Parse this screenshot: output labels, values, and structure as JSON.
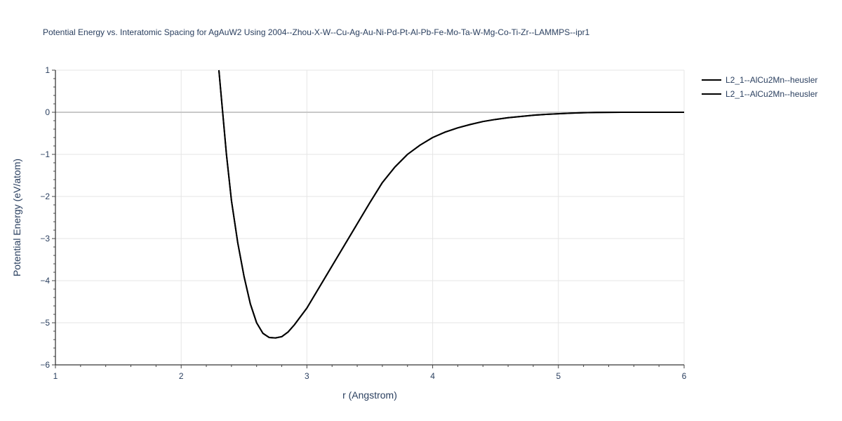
{
  "chart_data": {
    "type": "line",
    "title": "Potential Energy vs. Interatomic Spacing for AgAuW2 Using 2004--Zhou-X-W--Cu-Ag-Au-Ni-Pd-Pt-Al-Pb-Fe-Mo-Ta-W-Mg-Co-Ti-Zr--LAMMPS--ipr1",
    "xlabel": "r (Angstrom)",
    "ylabel": "Potential Energy (eV/atom)",
    "xlim": [
      1,
      6
    ],
    "ylim": [
      -6,
      1
    ],
    "x_ticks": [
      1,
      2,
      3,
      4,
      5,
      6
    ],
    "x_tick_labels": [
      "1",
      "2",
      "3",
      "4",
      "5",
      "6"
    ],
    "y_ticks": [
      1,
      0,
      -1,
      -2,
      -3,
      -4,
      -5,
      -6
    ],
    "y_tick_labels": [
      "1",
      "0",
      "−1",
      "−2",
      "−3",
      "−4",
      "−5",
      "−6"
    ],
    "grid": true,
    "legend_position": "top-right",
    "line_color": "#000000",
    "series": [
      {
        "name": "L2_1--AlCu2Mn--heusler",
        "x": [
          2.3,
          2.33,
          2.36,
          2.4,
          2.45,
          2.5,
          2.55,
          2.6,
          2.65,
          2.7,
          2.75,
          2.8,
          2.85,
          2.9,
          2.95,
          3.0,
          3.1,
          3.2,
          3.3,
          3.4,
          3.5,
          3.6,
          3.7,
          3.8,
          3.9,
          4.0,
          4.1,
          4.2,
          4.3,
          4.4,
          4.5,
          4.6,
          4.7,
          4.8,
          4.9,
          5.0,
          5.1,
          5.2,
          5.3,
          5.4,
          5.5,
          5.6,
          5.8,
          6.0
        ],
        "y": [
          1.0,
          0.0,
          -1.0,
          -2.1,
          -3.1,
          -3.9,
          -4.55,
          -5.0,
          -5.25,
          -5.35,
          -5.36,
          -5.33,
          -5.22,
          -5.05,
          -4.85,
          -4.65,
          -4.15,
          -3.65,
          -3.15,
          -2.65,
          -2.15,
          -1.67,
          -1.3,
          -1.0,
          -0.78,
          -0.6,
          -0.47,
          -0.37,
          -0.29,
          -0.22,
          -0.17,
          -0.13,
          -0.1,
          -0.07,
          -0.05,
          -0.035,
          -0.02,
          -0.01,
          -0.005,
          -0.002,
          0.0,
          0.0,
          0.0,
          0.0
        ]
      },
      {
        "name": "L2_1--AlCu2Mn--heusler",
        "x": [
          2.3,
          2.33,
          2.36,
          2.4,
          2.45,
          2.5,
          2.55,
          2.6,
          2.65,
          2.7,
          2.75,
          2.8,
          2.85,
          2.9,
          2.95,
          3.0,
          3.1,
          3.2,
          3.3,
          3.4,
          3.5,
          3.6,
          3.7,
          3.8,
          3.9,
          4.0,
          4.1,
          4.2,
          4.3,
          4.4,
          4.5,
          4.6,
          4.7,
          4.8,
          4.9,
          5.0,
          5.1,
          5.2,
          5.3,
          5.4,
          5.5,
          5.6,
          5.8,
          6.0
        ],
        "y": [
          1.0,
          0.0,
          -1.0,
          -2.1,
          -3.1,
          -3.9,
          -4.55,
          -5.0,
          -5.25,
          -5.35,
          -5.36,
          -5.33,
          -5.22,
          -5.05,
          -4.85,
          -4.65,
          -4.15,
          -3.65,
          -3.15,
          -2.65,
          -2.15,
          -1.67,
          -1.3,
          -1.0,
          -0.78,
          -0.6,
          -0.47,
          -0.37,
          -0.29,
          -0.22,
          -0.17,
          -0.13,
          -0.1,
          -0.07,
          -0.05,
          -0.035,
          -0.02,
          -0.01,
          -0.005,
          -0.002,
          0.0,
          0.0,
          0.0,
          0.0
        ]
      }
    ]
  }
}
